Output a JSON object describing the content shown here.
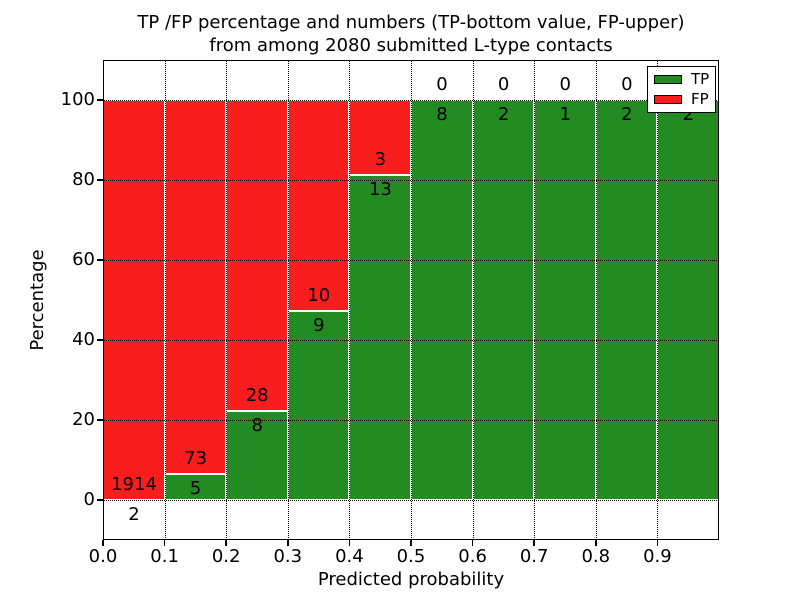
{
  "title": {
    "line1": "TP /FP percentage and numbers (TP-bottom value, FP-upper)",
    "line2": "from among 2080 submitted L-type contacts"
  },
  "axes": {
    "xlabel": "Predicted probability",
    "ylabel": "Percentage",
    "x_tick_labels": [
      "0.0",
      "0.1",
      "0.2",
      "0.3",
      "0.4",
      "0.5",
      "0.6",
      "0.7",
      "0.8",
      "0.9"
    ],
    "y_tick_labels": [
      "0",
      "20",
      "40",
      "60",
      "80",
      "100"
    ],
    "y_tick_values": [
      0,
      20,
      40,
      60,
      80,
      100
    ],
    "ylim": [
      -10,
      110
    ],
    "xlim": [
      0.0,
      1.0
    ],
    "grid": "dotted"
  },
  "legend": {
    "position": "upper right",
    "items": [
      {
        "label": "TP",
        "color": "#228B22"
      },
      {
        "label": "FP",
        "color": "#FA1D1D"
      }
    ]
  },
  "colors": {
    "tp": "#228B22",
    "fp": "#FA1D1D",
    "bar_edge": "#FFFFFF",
    "text": "#000000",
    "background": "#FFFFFF"
  },
  "chart_data": {
    "type": "bar",
    "subtype": "stacked-percentage",
    "title": "TP /FP percentage and numbers (TP-bottom value, FP-upper) from among 2080 submitted L-type contacts",
    "xlabel": "Predicted probability",
    "ylabel": "Percentage",
    "total_contacts": 2080,
    "bins": [
      "0.0-0.1",
      "0.1-0.2",
      "0.2-0.3",
      "0.3-0.4",
      "0.4-0.5",
      "0.5-0.6",
      "0.6-0.7",
      "0.7-0.8",
      "0.8-0.9",
      "0.9-1.0"
    ],
    "series": [
      {
        "name": "TP",
        "values": [
          2,
          5,
          8,
          9,
          13,
          8,
          2,
          1,
          2,
          2
        ]
      },
      {
        "name": "FP",
        "values": [
          1914,
          73,
          28,
          10,
          3,
          0,
          0,
          0,
          0,
          0
        ]
      }
    ],
    "tp_percent_of_bar": [
      0.1,
      6.4,
      22.2,
      47.4,
      81.2,
      100,
      100,
      100,
      100,
      100
    ],
    "ylim": [
      -10,
      110
    ]
  }
}
